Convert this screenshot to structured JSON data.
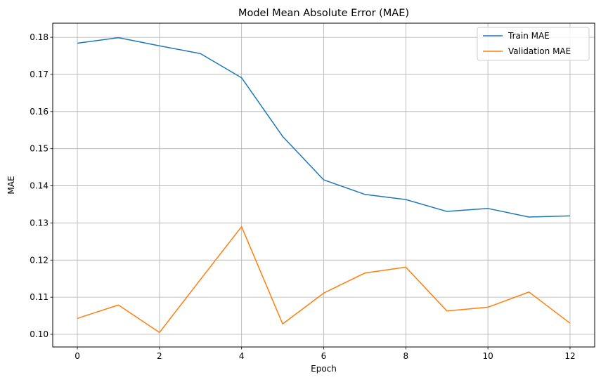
{
  "chart_data": {
    "type": "line",
    "title": "Model Mean Absolute Error (MAE)",
    "xlabel": "Epoch",
    "ylabel": "MAE",
    "x": [
      0,
      1,
      2,
      3,
      4,
      5,
      6,
      7,
      8,
      9,
      10,
      11,
      12
    ],
    "series": [
      {
        "name": "Train MAE",
        "color": "#1f77b4",
        "values": [
          0.1784,
          0.1799,
          0.1777,
          0.1756,
          0.1691,
          0.1533,
          0.1416,
          0.1377,
          0.1363,
          0.1331,
          0.1339,
          0.1316,
          0.1319
        ]
      },
      {
        "name": "Validation MAE",
        "color": "#ff7f0e",
        "values": [
          0.1043,
          0.1079,
          0.1005,
          0.1148,
          0.129,
          0.1028,
          0.1111,
          0.1165,
          0.1181,
          0.1063,
          0.1073,
          0.1114,
          0.103
        ]
      }
    ],
    "xticks": [
      0,
      2,
      4,
      6,
      8,
      10,
      12
    ],
    "xtick_labels": [
      "0",
      "2",
      "4",
      "6",
      "8",
      "10",
      "12"
    ],
    "yticks": [
      0.1,
      0.11,
      0.12,
      0.13,
      0.14,
      0.15,
      0.16,
      0.17,
      0.18
    ],
    "ytick_labels": [
      "0.10",
      "0.11",
      "0.12",
      "0.13",
      "0.14",
      "0.15",
      "0.16",
      "0.17",
      "0.18"
    ],
    "xlim": [
      -0.6,
      12.6
    ],
    "ylim": [
      0.0966,
      0.1838
    ],
    "grid": true,
    "legend_position": "top-right"
  }
}
